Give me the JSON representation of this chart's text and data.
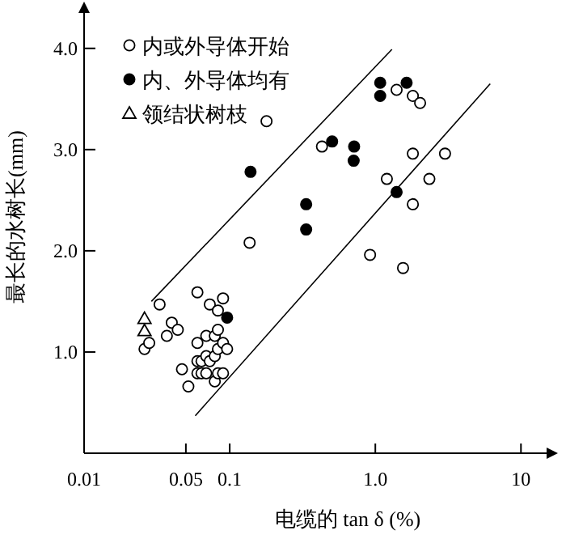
{
  "chart_data": {
    "type": "scatter",
    "xlabel": "电缆的 tan δ (%)",
    "ylabel": "最长的水树长(mm)",
    "log": "x",
    "legend": "top left",
    "grid": false,
    "xlim": [
      0.01,
      15
    ],
    "ylim": [
      0,
      4.35
    ],
    "xticks": [
      0.01,
      0.05,
      0.1,
      {
        "value": 1,
        "label": "1.0"
      },
      10
    ],
    "yticks": [
      {
        "value": 1,
        "label": "1.0"
      },
      {
        "value": 2,
        "label": "2.0"
      },
      {
        "value": 3,
        "label": "3.0"
      },
      {
        "value": 4,
        "label": "4.0"
      }
    ],
    "series": [
      {
        "name": "内或外导体开始",
        "color": "#ffffff",
        "marker": "circle",
        "x": [
          0.179,
          0.137,
          0.43,
          1.4,
          1.81,
          2.03,
          1.81,
          3.01,
          1.2,
          2.35,
          1.81,
          0.92,
          1.55,
          0.026,
          0.028,
          0.033,
          0.04,
          0.037,
          0.044,
          0.047,
          0.052,
          0.06,
          0.06,
          0.06,
          0.06,
          0.064,
          0.064,
          0.069,
          0.069,
          0.069,
          0.073,
          0.073,
          0.079,
          0.079,
          0.079,
          0.083,
          0.083,
          0.083,
          0.083,
          0.09,
          0.09,
          0.09,
          0.096
        ],
        "values": [
          3.28,
          2.08,
          3.03,
          3.59,
          3.53,
          3.46,
          2.96,
          2.96,
          2.71,
          2.71,
          2.46,
          1.96,
          1.83,
          1.03,
          1.09,
          1.47,
          1.29,
          1.16,
          1.22,
          0.83,
          0.66,
          1.59,
          1.09,
          0.91,
          0.79,
          0.91,
          0.79,
          1.16,
          0.96,
          0.79,
          1.47,
          0.91,
          0.96,
          1.16,
          0.71,
          1.41,
          1.22,
          1.03,
          0.79,
          1.53,
          1.09,
          0.79,
          1.03
        ]
      },
      {
        "name": "内、外导体均有",
        "color": "#000000",
        "marker": "circle",
        "x": [
          0.139,
          0.335,
          0.335,
          0.505,
          0.715,
          0.71,
          1.08,
          1.08,
          1.64,
          1.4,
          0.096
        ],
        "values": [
          2.78,
          2.46,
          2.21,
          3.08,
          3.03,
          2.89,
          3.66,
          3.53,
          3.66,
          2.58,
          1.34
        ]
      },
      {
        "name": "领结状树枝",
        "color": "#ffffff",
        "marker": "triangle",
        "x": [
          0.026,
          0.026
        ],
        "values": [
          1.33,
          1.21
        ]
      },
      {
        "type": "line",
        "color": "#000000",
        "marker": "none",
        "line_style": "solid",
        "x": [
          0.029,
          1.3
        ],
        "values": [
          1.5,
          3.99
        ]
      },
      {
        "type": "line",
        "color": "#000000",
        "marker": "none",
        "line_style": "solid",
        "x": [
          0.058,
          6.15
        ],
        "values": [
          0.37,
          3.65
        ]
      }
    ]
  }
}
